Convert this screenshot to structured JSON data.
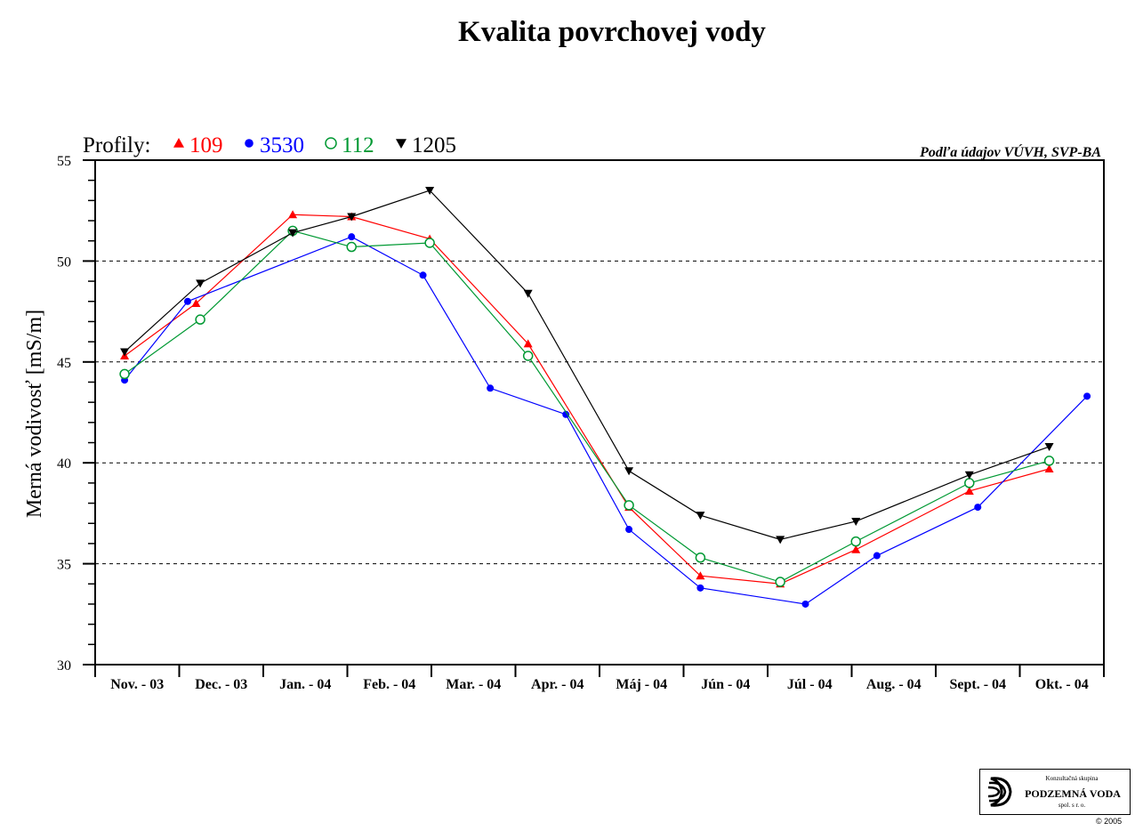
{
  "chart_data": {
    "type": "line",
    "title": "Kvalita povrchovej vody",
    "source": "Podľa údajov VÚVH, SVP-BA",
    "legend_prefix": "Profily:",
    "legend_placement": "top-left",
    "ylabel": "Merná vodivosť [mS/m]",
    "xlabel": "",
    "ylim": [
      30,
      55
    ],
    "yticks": [
      30,
      35,
      40,
      45,
      50,
      55
    ],
    "grid_y": [
      35,
      40,
      45,
      50
    ],
    "categories": [
      "Nov. - 03",
      "Dec. - 03",
      "Jan. - 04",
      "Feb. - 04",
      "Mar. - 04",
      "Apr. - 04",
      "Máj - 04",
      "Jún - 04",
      "Júl - 04",
      "Aug. - 04",
      "Sept. - 04",
      "Okt. - 04"
    ],
    "series": [
      {
        "name": "109",
        "color": "#ff0000",
        "marker": "triangle-up",
        "points": [
          [
            0.35,
            45.3
          ],
          [
            1.2,
            47.9
          ],
          [
            2.35,
            52.3
          ],
          [
            3.05,
            52.2
          ],
          [
            3.98,
            51.1
          ],
          [
            5.15,
            45.9
          ],
          [
            6.35,
            37.8
          ],
          [
            7.2,
            34.4
          ],
          [
            8.15,
            34.0
          ],
          [
            9.05,
            35.7
          ],
          [
            10.4,
            38.6
          ],
          [
            11.35,
            39.7
          ]
        ]
      },
      {
        "name": "3530",
        "color": "#0000ff",
        "marker": "circle-filled",
        "points": [
          [
            0.35,
            44.1
          ],
          [
            1.1,
            48.0
          ],
          [
            3.05,
            51.2
          ],
          [
            3.9,
            49.3
          ],
          [
            4.7,
            43.7
          ],
          [
            5.6,
            42.4
          ],
          [
            6.35,
            36.7
          ],
          [
            7.2,
            33.8
          ],
          [
            8.45,
            33.0
          ],
          [
            9.3,
            35.4
          ],
          [
            10.5,
            37.8
          ],
          [
            11.8,
            43.3
          ]
        ]
      },
      {
        "name": "112",
        "color": "#009933",
        "marker": "circle-open",
        "points": [
          [
            0.35,
            44.4
          ],
          [
            1.25,
            47.1
          ],
          [
            2.35,
            51.5
          ],
          [
            3.05,
            50.7
          ],
          [
            3.98,
            50.9
          ],
          [
            5.15,
            45.3
          ],
          [
            6.35,
            37.9
          ],
          [
            7.2,
            35.3
          ],
          [
            8.15,
            34.1
          ],
          [
            9.05,
            36.1
          ],
          [
            10.4,
            39.0
          ],
          [
            11.35,
            40.1
          ]
        ]
      },
      {
        "name": "1205",
        "color": "#000000",
        "marker": "triangle-down",
        "points": [
          [
            0.35,
            45.5
          ],
          [
            1.25,
            48.9
          ],
          [
            2.35,
            51.4
          ],
          [
            3.05,
            52.2
          ],
          [
            3.98,
            53.5
          ],
          [
            5.15,
            48.4
          ],
          [
            6.35,
            39.6
          ],
          [
            7.2,
            37.4
          ],
          [
            8.15,
            36.2
          ],
          [
            9.05,
            37.1
          ],
          [
            10.4,
            39.4
          ],
          [
            11.35,
            40.8
          ]
        ]
      }
    ]
  },
  "logo": {
    "top_text": "Konzultačná skupina",
    "name": "PODZEMNÁ VODA",
    "sub_text": "spol. s r. o.",
    "copyright": "© 2005"
  }
}
